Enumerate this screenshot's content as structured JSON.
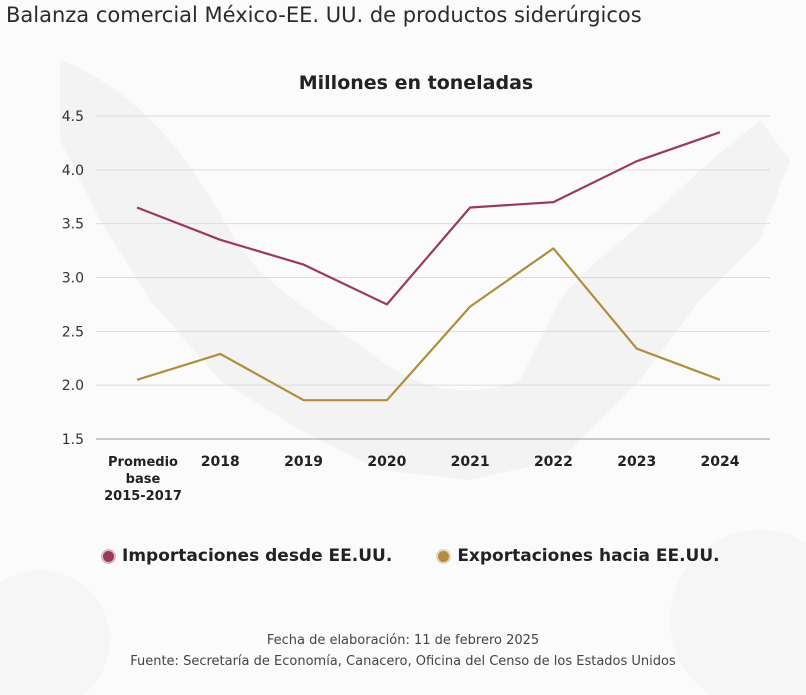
{
  "header": {
    "title": "Balanza comercial México-EE. UU. de productos siderúrgicos"
  },
  "chart_data": {
    "type": "line",
    "title": "Millones en toneladas",
    "xlabel": "",
    "ylabel": "",
    "categories": [
      "Promedio base 2015-2017",
      "2018",
      "2019",
      "2020",
      "2021",
      "2022",
      "2023",
      "2024"
    ],
    "category_lines": [
      [
        "Promedio",
        "base",
        "2015-2017"
      ],
      [
        "2018"
      ],
      [
        "2019"
      ],
      [
        "2020"
      ],
      [
        "2021"
      ],
      [
        "2022"
      ],
      [
        "2023"
      ],
      [
        "2024"
      ]
    ],
    "ylim": [
      1.5,
      4.5
    ],
    "yticks": [
      "1.5",
      "2.0",
      "2.5",
      "3.0",
      "3.5",
      "4.0",
      "4.5"
    ],
    "ytick_values": [
      1.5,
      2.0,
      2.5,
      3.0,
      3.5,
      4.0,
      4.5
    ],
    "grid": true,
    "legend_position": "bottom",
    "series": [
      {
        "name": "Importaciones desde EE.UU.",
        "color": "#9b3a5e",
        "values": [
          3.65,
          3.35,
          3.12,
          2.75,
          3.65,
          3.7,
          4.08,
          4.35
        ]
      },
      {
        "name": "Exportaciones hacia EE.UU.",
        "color": "#b08d3f",
        "values": [
          2.05,
          2.29,
          1.86,
          1.86,
          2.73,
          3.27,
          2.34,
          2.05
        ]
      }
    ]
  },
  "footer": {
    "date_line": "Fecha de elaboración: 11 de febrero 2025",
    "source_line": "Fuente: Secretaría de Economía, Canacero, Oficina del Censo de los Estados Unidos"
  }
}
